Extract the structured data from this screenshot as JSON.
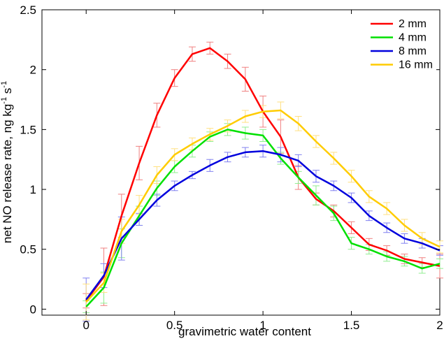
{
  "chart_data": {
    "type": "line",
    "xlabel": "gravimetric water content",
    "ylabel_parts": [
      "net NO release rate, ng kg",
      "-1",
      " s",
      "-1"
    ],
    "xlim": [
      -0.25,
      2
    ],
    "ylim": [
      -0.05,
      2.5
    ],
    "x_ticks": [
      0,
      0.5,
      1,
      1.5,
      2
    ],
    "x_tick_labels": [
      "0",
      "0.5",
      "1",
      "1.5",
      "2"
    ],
    "y_ticks": [
      0,
      0.5,
      1,
      1.5,
      2,
      2.5
    ],
    "y_tick_labels": [
      "0",
      "0.5",
      "1",
      "1.5",
      "2",
      "2.5"
    ],
    "grid": false,
    "legend_position": "top-right",
    "x": [
      0,
      0.1,
      0.2,
      0.3,
      0.4,
      0.5,
      0.6,
      0.7,
      0.8,
      0.9,
      1.0,
      1.1,
      1.2,
      1.3,
      1.4,
      1.5,
      1.6,
      1.7,
      1.8,
      1.9,
      2.0
    ],
    "series": [
      {
        "name": "2 mm",
        "color": "#ff0000",
        "error_color": "#f08080",
        "values": [
          0.07,
          0.27,
          0.78,
          1.22,
          1.62,
          1.93,
          2.13,
          2.18,
          2.07,
          1.92,
          1.65,
          1.44,
          1.1,
          0.92,
          0.82,
          0.68,
          0.54,
          0.49,
          0.42,
          0.39,
          0.36
        ],
        "errors": [
          0.06,
          0.24,
          0.18,
          0.14,
          0.1,
          0.07,
          0.06,
          0.05,
          0.06,
          0.1,
          0.13,
          0.14,
          0.1,
          0.05,
          0.05,
          0.05,
          0.05,
          0.04,
          0.04,
          0.04,
          0.1
        ]
      },
      {
        "name": "4 mm",
        "color": "#00e000",
        "error_color": "#90ee90",
        "values": [
          0.02,
          0.18,
          0.55,
          0.78,
          1.01,
          1.19,
          1.32,
          1.44,
          1.5,
          1.47,
          1.45,
          1.26,
          1.1,
          0.95,
          0.8,
          0.55,
          0.5,
          0.44,
          0.4,
          0.34,
          0.38
        ],
        "errors": [
          0.05,
          0.13,
          0.12,
          0.08,
          0.06,
          0.05,
          0.05,
          0.04,
          0.05,
          0.05,
          0.05,
          0.05,
          0.05,
          0.08,
          0.06,
          0.05,
          0.04,
          0.04,
          0.04,
          0.04,
          0.04
        ]
      },
      {
        "name": "8 mm",
        "color": "#0000dd",
        "error_color": "#8080f0",
        "values": [
          0.08,
          0.28,
          0.59,
          0.75,
          0.91,
          1.03,
          1.12,
          1.2,
          1.27,
          1.31,
          1.32,
          1.29,
          1.24,
          1.11,
          1.03,
          0.93,
          0.78,
          0.68,
          0.59,
          0.55,
          0.49
        ],
        "errors": [
          0.18,
          0.1,
          0.18,
          0.05,
          0.05,
          0.04,
          0.03,
          0.05,
          0.04,
          0.04,
          0.05,
          0.06,
          0.05,
          0.05,
          0.04,
          0.04,
          0.04,
          0.04,
          0.04,
          0.04,
          0.04
        ]
      },
      {
        "name": "16 mm",
        "color": "#ffcc00",
        "error_color": "#ffe080",
        "values": [
          0.06,
          0.22,
          0.65,
          0.87,
          1.12,
          1.29,
          1.38,
          1.46,
          1.53,
          1.61,
          1.65,
          1.66,
          1.55,
          1.4,
          1.26,
          1.11,
          0.94,
          0.84,
          0.7,
          0.59,
          0.52
        ],
        "errors": [
          0.15,
          0.08,
          0.1,
          0.08,
          0.07,
          0.05,
          0.05,
          0.05,
          0.05,
          0.05,
          0.05,
          0.07,
          0.06,
          0.05,
          0.05,
          0.05,
          0.05,
          0.05,
          0.05,
          0.05,
          0.05
        ]
      }
    ]
  }
}
